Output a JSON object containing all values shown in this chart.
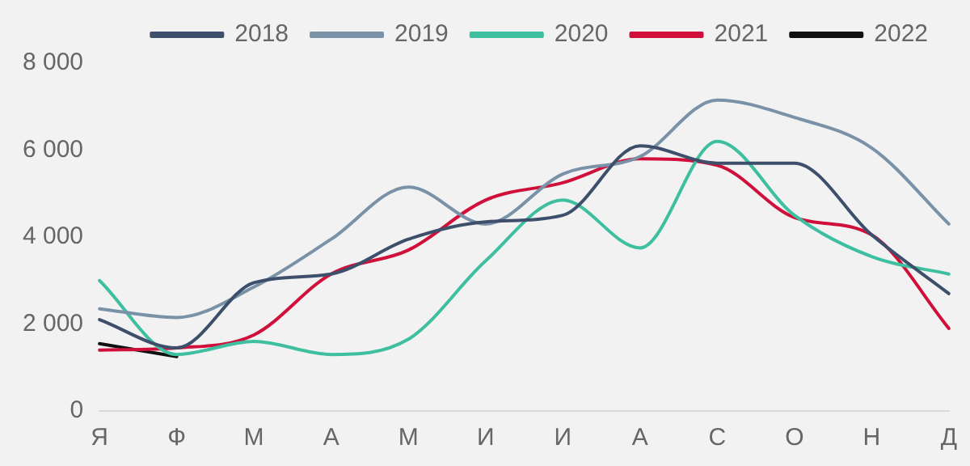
{
  "chart_data": {
    "type": "line",
    "categories": [
      "Я",
      "Ф",
      "М",
      "А",
      "М",
      "И",
      "И",
      "А",
      "С",
      "О",
      "Н",
      "Д"
    ],
    "series": [
      {
        "name": "2018",
        "color": "#3d4f6b",
        "values": [
          2100,
          1450,
          2950,
          3150,
          3950,
          4350,
          4500,
          6100,
          5700,
          5700,
          4050,
          2700
        ]
      },
      {
        "name": "2019",
        "color": "#7a92a8",
        "values": [
          2350,
          2150,
          2850,
          3950,
          5150,
          4300,
          5450,
          5850,
          7150,
          6750,
          6050,
          4300
        ]
      },
      {
        "name": "2020",
        "color": "#3dbfa0",
        "values": [
          3000,
          1300,
          1600,
          1300,
          1650,
          3450,
          4850,
          3750,
          6200,
          4500,
          3550,
          3150
        ]
      },
      {
        "name": "2021",
        "color": "#d0103a",
        "values": [
          1400,
          1450,
          1750,
          3150,
          3700,
          4850,
          5250,
          5800,
          5650,
          4450,
          4050,
          1900
        ]
      },
      {
        "name": "2022",
        "color": "#111111",
        "values": [
          1550,
          1250,
          null,
          null,
          null,
          null,
          null,
          null,
          null,
          null,
          null,
          null
        ]
      }
    ],
    "ylim": [
      0,
      8000
    ],
    "yticks": [
      {
        "value": 0,
        "label": "0"
      },
      {
        "value": 2000,
        "label": "2 000"
      },
      {
        "value": 4000,
        "label": "4 000"
      },
      {
        "value": 6000,
        "label": "6 000"
      },
      {
        "value": 8000,
        "label": "8 000"
      }
    ],
    "grid": false,
    "legend": "top right",
    "marker": "none",
    "line_style": "solid"
  }
}
